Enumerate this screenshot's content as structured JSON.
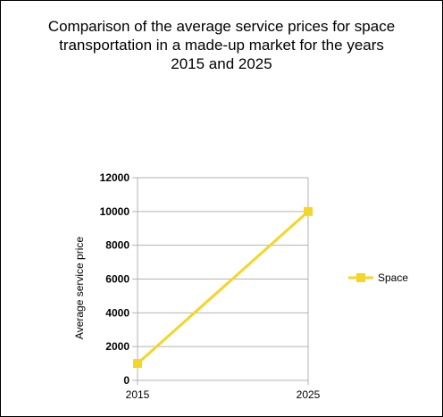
{
  "chart_data": {
    "type": "line",
    "title": "Comparison of the average service prices for space\ntransportation in a made-up market for the years\n2015 and 2025",
    "xlabel": "",
    "ylabel": "Average service price",
    "categories": [
      "2015",
      "2025"
    ],
    "series": [
      {
        "name": "Space",
        "values": [
          1000,
          10000
        ],
        "color": "#f5d527"
      }
    ],
    "ylim": [
      0,
      12000
    ],
    "yticks": [
      "0",
      "2000",
      "4000",
      "6000",
      "8000",
      "10000",
      "12000"
    ],
    "grid": true,
    "legend": "right"
  }
}
